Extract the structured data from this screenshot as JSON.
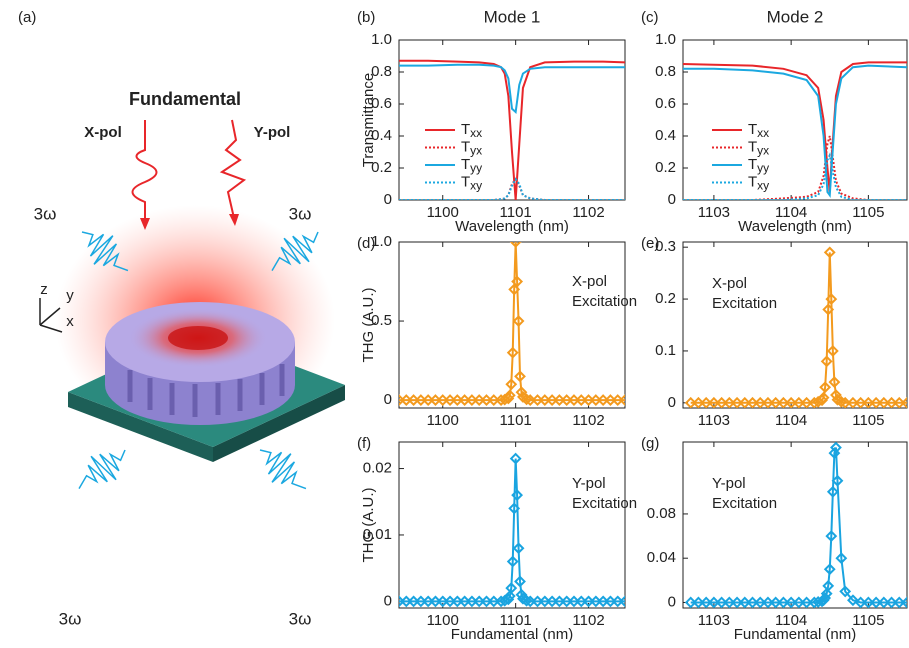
{
  "diagram": {
    "label": "(a)",
    "title": "Fundamental",
    "x_pol": "X-pol",
    "y_pol": "Y-pol",
    "harmonic": [
      "3ω",
      "3ω",
      "3ω",
      "3ω"
    ],
    "axes": [
      "z",
      "y",
      "x"
    ]
  },
  "chart_data": [
    {
      "type": "line",
      "panel_label": "(b)",
      "title": "Mode 1",
      "xlabel": "Wavelength (nm)",
      "ylabel": "Transmittance",
      "x": [
        1099.4,
        1099.8,
        1100.2,
        1100.5,
        1100.7,
        1100.8,
        1100.85,
        1100.9,
        1100.95,
        1101.0,
        1101.05,
        1101.1,
        1101.2,
        1101.4,
        1101.8,
        1102.2,
        1102.5
      ],
      "xlim": [
        1099.4,
        1102.5
      ],
      "xticks": [
        1100,
        1101,
        1102
      ],
      "ylim": [
        0,
        1
      ],
      "yticks": [
        0,
        0.2,
        0.4,
        0.6,
        0.8,
        {
          "value": 1,
          "label": "1.0"
        }
      ],
      "legend": true,
      "series": [
        {
          "name": "Txx",
          "color": "#e8262a",
          "linestyle": "solid",
          "values": [
            0.87,
            0.87,
            0.865,
            0.86,
            0.85,
            0.83,
            0.79,
            0.65,
            0.3,
            0.0,
            0.35,
            0.7,
            0.83,
            0.86,
            0.865,
            0.865,
            0.86
          ]
        },
        {
          "name": "Tyx",
          "color": "#e8262a",
          "linestyle": "dotted",
          "values": [
            0,
            0,
            0,
            0,
            0,
            0.005,
            0.01,
            0.03,
            0.1,
            0.13,
            0.09,
            0.03,
            0.01,
            0,
            0,
            0,
            0
          ]
        },
        {
          "name": "Tyy",
          "color": "#1ba8e0",
          "linestyle": "solid",
          "values": [
            0.84,
            0.84,
            0.845,
            0.845,
            0.84,
            0.83,
            0.81,
            0.76,
            0.57,
            0.55,
            0.72,
            0.79,
            0.82,
            0.83,
            0.83,
            0.83,
            0.83
          ]
        },
        {
          "name": "Txy",
          "color": "#1ba8e0",
          "linestyle": "dotted",
          "values": [
            0,
            0,
            0,
            0,
            0,
            0.005,
            0.01,
            0.03,
            0.09,
            0.13,
            0.1,
            0.03,
            0.01,
            0,
            0,
            0,
            0
          ]
        }
      ]
    },
    {
      "type": "line",
      "panel_label": "(c)",
      "title": "Mode 2",
      "xlabel": "Wavelength (nm)",
      "x": [
        1102.6,
        1103,
        1103.5,
        1103.9,
        1104.2,
        1104.35,
        1104.42,
        1104.47,
        1104.5,
        1104.53,
        1104.58,
        1104.65,
        1104.8,
        1105,
        1105.5
      ],
      "xlim": [
        1102.6,
        1105.5
      ],
      "xticks": [
        1103,
        1104,
        1105
      ],
      "ylim": [
        0,
        1
      ],
      "yticks": [
        0,
        0.2,
        0.4,
        0.6,
        0.8,
        {
          "value": 1,
          "label": "1.0"
        }
      ],
      "legend": true,
      "series": [
        {
          "name": "Txx",
          "color": "#e8262a",
          "linestyle": "solid",
          "values": [
            0.85,
            0.845,
            0.84,
            0.82,
            0.78,
            0.7,
            0.5,
            0.2,
            0.05,
            0.3,
            0.65,
            0.8,
            0.85,
            0.86,
            0.86
          ]
        },
        {
          "name": "Tyx",
          "color": "#e8262a",
          "linestyle": "dotted",
          "values": [
            0,
            0,
            0,
            0.01,
            0.02,
            0.05,
            0.15,
            0.35,
            0.4,
            0.3,
            0.12,
            0.04,
            0.01,
            0,
            0
          ]
        },
        {
          "name": "Tyy",
          "color": "#1ba8e0",
          "linestyle": "solid",
          "values": [
            0.82,
            0.82,
            0.81,
            0.79,
            0.75,
            0.65,
            0.4,
            0.05,
            0.03,
            0.25,
            0.6,
            0.76,
            0.83,
            0.84,
            0.83
          ]
        },
        {
          "name": "Txy",
          "color": "#1ba8e0",
          "linestyle": "dotted",
          "values": [
            0,
            0,
            0,
            0,
            0.01,
            0.03,
            0.1,
            0.25,
            0.28,
            0.2,
            0.08,
            0.02,
            0,
            0,
            0
          ]
        }
      ]
    },
    {
      "type": "line",
      "panel_label": "(d)",
      "ylabel": "THG (A.U.)",
      "annotation": [
        "X-pol",
        "Excitation"
      ],
      "markers": "diamond",
      "x": [
        1099.4,
        1099.5,
        1099.6,
        1099.7,
        1099.8,
        1099.9,
        1100.0,
        1100.1,
        1100.2,
        1100.3,
        1100.4,
        1100.5,
        1100.6,
        1100.7,
        1100.8,
        1100.85,
        1100.9,
        1100.92,
        1100.94,
        1100.96,
        1100.98,
        1101.0,
        1101.02,
        1101.04,
        1101.06,
        1101.08,
        1101.1,
        1101.15,
        1101.2,
        1101.3,
        1101.4,
        1101.5,
        1101.6,
        1101.7,
        1101.8,
        1101.9,
        1102.0,
        1102.1,
        1102.2,
        1102.3,
        1102.4,
        1102.5
      ],
      "xlim": [
        1099.4,
        1102.5
      ],
      "xticks": [
        1100,
        1101,
        1102
      ],
      "ylim": [
        -0.05,
        1
      ],
      "yticks": [
        0,
        0.5,
        {
          "value": 1,
          "label": "1.0"
        }
      ],
      "series": [
        {
          "color": "#f39a1e",
          "values": [
            0,
            0,
            0,
            0,
            0,
            0,
            0,
            0,
            0,
            0,
            0,
            0,
            0,
            0,
            0,
            0.003,
            0.01,
            0.03,
            0.1,
            0.3,
            0.7,
            1.0,
            0.75,
            0.5,
            0.15,
            0.05,
            0.02,
            0.005,
            0,
            0,
            0,
            0,
            0,
            0,
            0,
            0,
            0,
            0,
            0,
            0,
            0,
            0
          ]
        }
      ]
    },
    {
      "type": "line",
      "panel_label": "(e)",
      "annotation": [
        "X-pol",
        "Excitation"
      ],
      "markers": "diamond",
      "x": [
        1102.7,
        1102.8,
        1102.9,
        1103.0,
        1103.1,
        1103.2,
        1103.3,
        1103.4,
        1103.5,
        1103.6,
        1103.7,
        1103.8,
        1103.9,
        1104.0,
        1104.1,
        1104.2,
        1104.3,
        1104.35,
        1104.4,
        1104.42,
        1104.44,
        1104.46,
        1104.48,
        1104.5,
        1104.52,
        1104.54,
        1104.56,
        1104.58,
        1104.6,
        1104.65,
        1104.7,
        1104.8,
        1104.9,
        1105.0,
        1105.1,
        1105.2,
        1105.3,
        1105.4,
        1105.5
      ],
      "xlim": [
        1102.6,
        1105.5
      ],
      "xticks": [
        1103,
        1104,
        1105
      ],
      "ylim": [
        -0.01,
        0.31
      ],
      "yticks": [
        0,
        0.1,
        0.2,
        0.3
      ],
      "series": [
        {
          "color": "#f39a1e",
          "values": [
            0,
            0,
            0,
            0,
            0,
            0,
            0,
            0,
            0,
            0,
            0,
            0,
            0,
            0,
            0,
            0,
            0,
            0.002,
            0.005,
            0.01,
            0.03,
            0.08,
            0.18,
            0.29,
            0.2,
            0.1,
            0.04,
            0.015,
            0.006,
            0.002,
            0,
            0,
            0,
            0,
            0,
            0,
            0,
            0,
            0
          ]
        }
      ]
    },
    {
      "type": "line",
      "panel_label": "(f)",
      "ylabel": "THG (A.U.)",
      "xlabel": "Fundamental (nm)",
      "annotation": [
        "Y-pol",
        "Excitation"
      ],
      "markers": "diamond",
      "x": [
        1099.4,
        1099.5,
        1099.6,
        1099.7,
        1099.8,
        1099.9,
        1100.0,
        1100.1,
        1100.2,
        1100.3,
        1100.4,
        1100.5,
        1100.6,
        1100.7,
        1100.8,
        1100.85,
        1100.9,
        1100.92,
        1100.94,
        1100.96,
        1100.98,
        1101.0,
        1101.02,
        1101.04,
        1101.06,
        1101.08,
        1101.1,
        1101.15,
        1101.2,
        1101.3,
        1101.4,
        1101.5,
        1101.6,
        1101.7,
        1101.8,
        1101.9,
        1102.0,
        1102.1,
        1102.2,
        1102.3,
        1102.4,
        1102.5
      ],
      "xlim": [
        1099.4,
        1102.5
      ],
      "xticks": [
        1100,
        1101,
        1102
      ],
      "ylim": [
        -0.001,
        0.024
      ],
      "yticks": [
        0,
        0.01,
        0.02
      ],
      "series": [
        {
          "color": "#1aa4e0",
          "values": [
            0,
            0,
            0,
            0,
            0,
            0,
            0,
            0,
            0,
            0,
            0,
            0,
            0,
            0,
            0,
            0.0001,
            0.0003,
            0.0008,
            0.002,
            0.006,
            0.014,
            0.0215,
            0.016,
            0.008,
            0.003,
            0.001,
            0.0004,
            0.0001,
            0,
            0,
            0,
            0,
            0,
            0,
            0,
            0,
            0,
            0,
            0,
            0,
            0,
            0
          ]
        }
      ]
    },
    {
      "type": "line",
      "panel_label": "(g)",
      "xlabel": "Fundamental (nm)",
      "annotation": [
        "Y-pol",
        "Excitation"
      ],
      "markers": "diamond",
      "x": [
        1102.7,
        1102.8,
        1102.9,
        1103.0,
        1103.1,
        1103.2,
        1103.3,
        1103.4,
        1103.5,
        1103.6,
        1103.7,
        1103.8,
        1103.9,
        1104.0,
        1104.1,
        1104.2,
        1104.3,
        1104.35,
        1104.4,
        1104.42,
        1104.44,
        1104.46,
        1104.48,
        1104.5,
        1104.52,
        1104.54,
        1104.56,
        1104.58,
        1104.6,
        1104.65,
        1104.7,
        1104.8,
        1104.9,
        1105.0,
        1105.1,
        1105.2,
        1105.3,
        1105.4,
        1105.5
      ],
      "xlim": [
        1102.6,
        1105.5
      ],
      "xticks": [
        1103,
        1104,
        1105
      ],
      "ylim": [
        -0.005,
        0.145
      ],
      "yticks": [
        0,
        0.04,
        0.08
      ],
      "series": [
        {
          "color": "#1aa4e0",
          "values": [
            0,
            0,
            0,
            0,
            0,
            0,
            0,
            0,
            0,
            0,
            0,
            0,
            0,
            0,
            0,
            0,
            0,
            0.0005,
            0.001,
            0.002,
            0.004,
            0.008,
            0.015,
            0.03,
            0.06,
            0.1,
            0.135,
            0.14,
            0.11,
            0.04,
            0.01,
            0.002,
            0,
            0,
            0,
            0,
            0,
            0,
            0
          ]
        }
      ]
    }
  ]
}
